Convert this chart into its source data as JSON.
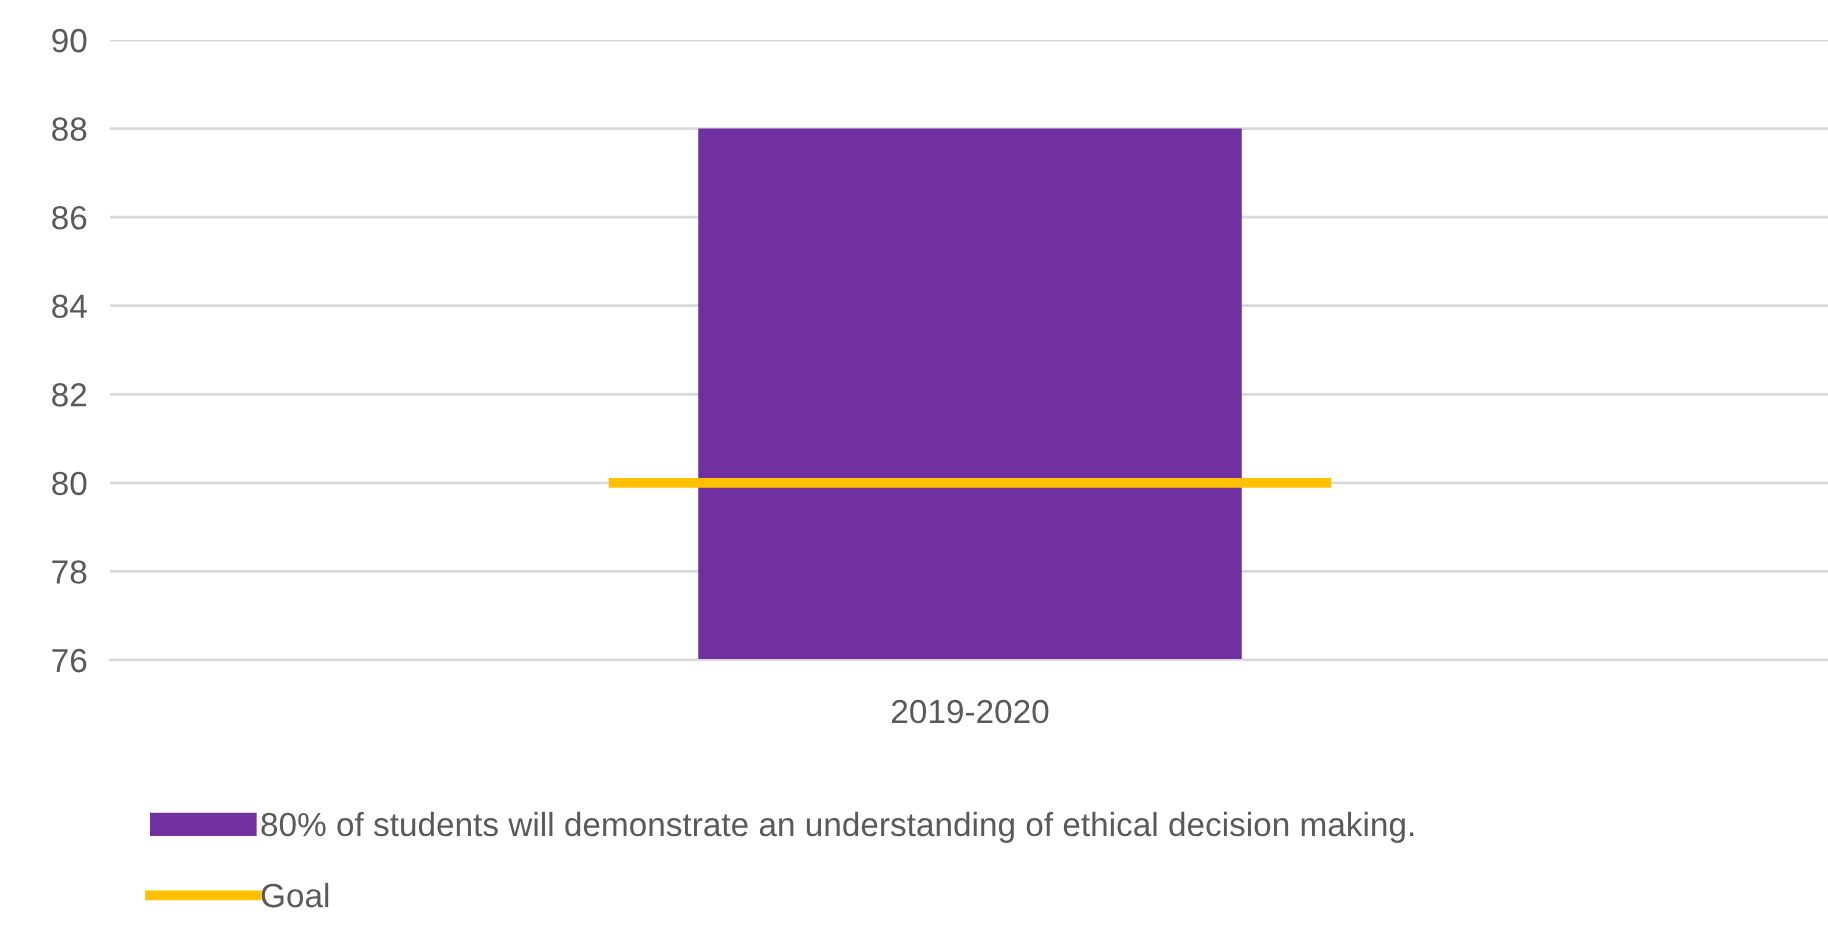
{
  "chart_data": {
    "type": "bar",
    "categories": [
      "2019-2020"
    ],
    "series": [
      {
        "name": "80% of students will demonstrate an understanding of ethical decision making.",
        "color": "#7030a0",
        "values": [
          88
        ]
      }
    ],
    "ref_lines": [
      {
        "axis": "y",
        "value": 80,
        "label": "Goal",
        "color": "#ffc000"
      }
    ],
    "ylim": [
      76,
      90
    ],
    "yticks": [
      76,
      78,
      80,
      82,
      84,
      86,
      88,
      90
    ],
    "grid": "y",
    "legend": "bottom"
  }
}
